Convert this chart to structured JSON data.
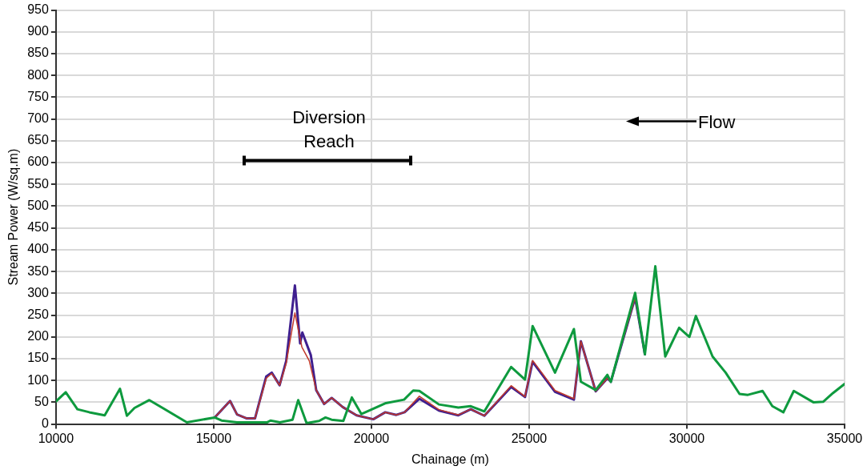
{
  "chart_data": {
    "type": "line",
    "xlabel": "Chainage (m)",
    "ylabel": "Stream Power (W/sq.m)",
    "xlim": [
      10000,
      35000
    ],
    "xticks": [
      10000,
      15000,
      20000,
      25000,
      30000,
      35000
    ],
    "ylim": [
      0,
      950
    ],
    "yticks": [
      0,
      50,
      100,
      150,
      200,
      250,
      300,
      350,
      400,
      450,
      500,
      550,
      600,
      650,
      700,
      750,
      800,
      850,
      900,
      950
    ],
    "grid": true,
    "marker": "none",
    "line_style": "solid",
    "annotations": [
      "Diversion Reach",
      "Flow"
    ],
    "series": [
      {
        "color": "#0e9a3e",
        "x": [
          10000,
          10310,
          10680,
          11060,
          11545,
          12030,
          12250,
          12490,
          12960,
          14150,
          15030,
          15250,
          15740,
          16700,
          16800,
          17100,
          17500,
          17680,
          17945,
          18340,
          18545,
          18740,
          19110,
          19380,
          19680,
          20460,
          21035,
          21325,
          21520,
          22140,
          22755,
          23150,
          23580,
          24430,
          24870,
          25110,
          25820,
          26420,
          26640,
          27110,
          27480,
          27590,
          28360,
          28670,
          29000,
          29315,
          29755,
          30080,
          30285,
          30815,
          31230,
          31670,
          31935,
          32400,
          32710,
          33060,
          33390,
          34010,
          34320,
          34630,
          35000
        ],
        "values": [
          52,
          73,
          34,
          27,
          20,
          81,
          19,
          37,
          55,
          4,
          15,
          8,
          4,
          4,
          8,
          4,
          10,
          55,
          2,
          7,
          15,
          10,
          7,
          61,
          23,
          48,
          56,
          77,
          76,
          45,
          38,
          41,
          29,
          131,
          102,
          225,
          118,
          218,
          97,
          78,
          113,
          97,
          301,
          160,
          362,
          155,
          221,
          200,
          248,
          155,
          118,
          69,
          67,
          76,
          41,
          27,
          76,
          50,
          51,
          71,
          92
        ]
      },
      {
        "color": "#c0392b",
        "x": [
          15030,
          15520,
          15740,
          16050,
          16310,
          16665,
          16840,
          17090,
          17300,
          17575,
          17795,
          18030,
          18250,
          18500,
          18740,
          19090,
          19530,
          20060,
          20440,
          20790,
          21050,
          21520,
          22140,
          22755,
          23150,
          23580,
          24430,
          24870,
          25110,
          25820,
          26420,
          26640,
          27110,
          27480,
          27590,
          28360,
          28670
        ],
        "values": [
          15,
          53,
          22,
          13,
          13,
          105,
          116,
          89,
          140,
          255,
          177,
          145,
          78,
          46,
          60,
          39,
          20,
          11,
          27,
          21,
          27,
          64,
          33,
          21,
          34,
          19,
          88,
          63,
          146,
          77,
          58,
          190,
          75,
          105,
          97,
          290,
          160
        ]
      },
      {
        "color": "#3f1f8f",
        "x": [
          15030,
          15520,
          15740,
          16050,
          16310,
          16665,
          16840,
          17090,
          17300,
          17575,
          17740,
          17810,
          18080,
          18250,
          18500,
          18740,
          19090,
          19530,
          20060,
          20440,
          20790,
          21050,
          21520,
          22140,
          22755,
          23150,
          23580,
          24430,
          24870,
          25110,
          25820,
          26420,
          26640,
          27110,
          27480,
          27590,
          28360,
          28670
        ],
        "values": [
          15,
          53,
          22,
          13,
          13,
          109,
          118,
          89,
          145,
          318,
          185,
          210,
          158,
          78,
          46,
          60,
          39,
          20,
          11,
          27,
          21,
          27,
          58,
          31,
          20,
          34,
          19,
          85,
          62,
          143,
          74,
          56,
          190,
          75,
          105,
          97,
          290,
          160
        ]
      }
    ]
  }
}
